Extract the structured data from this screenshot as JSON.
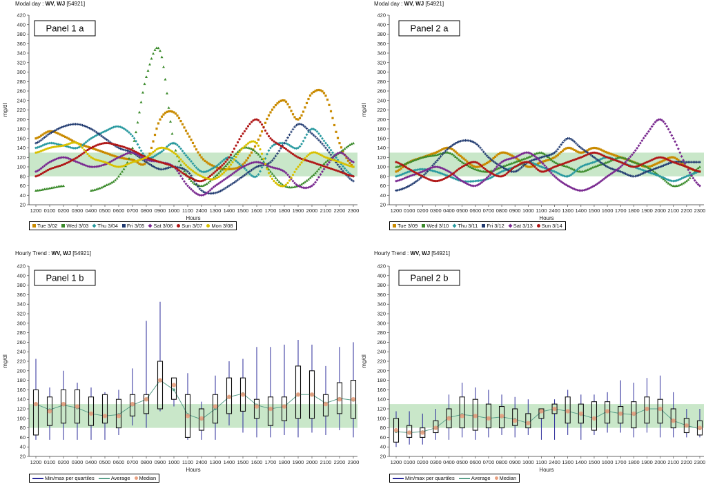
{
  "panels": [
    {
      "title_prefix": "Modal day : ",
      "title_bold": "WV, WJ",
      "title_suffix": " [54921]",
      "label": "Panel 1 a",
      "legend": [
        {
          "name": "Tue 3/02",
          "color": "#c98a00",
          "marker": "square"
        },
        {
          "name": "Wed 3/03",
          "color": "#3a8a2a",
          "marker": "triangle"
        },
        {
          "name": "Thu 3/04",
          "color": "#2a9aa0",
          "marker": "diamond"
        },
        {
          "name": "Fri 3/05",
          "color": "#203a70",
          "marker": "plus"
        },
        {
          "name": "Sat 3/06",
          "color": "#7a2a90",
          "marker": "diamond"
        },
        {
          "name": "Sun 3/07",
          "color": "#b01818",
          "marker": "circle"
        },
        {
          "name": "Mon 3/08",
          "color": "#d8c000",
          "marker": "circle"
        }
      ]
    },
    {
      "title_prefix": "Modal day : ",
      "title_bold": "WV, WJ",
      "title_suffix": " [54921]",
      "label": "Panel 2 a",
      "legend": [
        {
          "name": "Tue 3/09",
          "color": "#c98a00",
          "marker": "square"
        },
        {
          "name": "Wed 3/10",
          "color": "#3a8a2a",
          "marker": "triangle"
        },
        {
          "name": "Thu 3/11",
          "color": "#2a9aa0",
          "marker": "diamond"
        },
        {
          "name": "Fri 3/12",
          "color": "#203a70",
          "marker": "plus"
        },
        {
          "name": "Sat 3/13",
          "color": "#7a2a90",
          "marker": "diamond"
        },
        {
          "name": "Sun 3/14",
          "color": "#b01818",
          "marker": "circle"
        }
      ]
    },
    {
      "title_prefix": "Hourly Trend : ",
      "title_bold": "WV, WJ",
      "title_suffix": " [54921]",
      "label": "Panel 1 b",
      "legend": [
        {
          "name": "Min/max per quartiles",
          "color": "#2a2a9a",
          "marker": "line"
        },
        {
          "name": "Average",
          "color": "#5aa08a",
          "marker": "line"
        },
        {
          "name": "Median",
          "color": "#e8a080",
          "marker": "dot"
        }
      ]
    },
    {
      "title_prefix": "Hourly Trend : ",
      "title_bold": "WV, WJ",
      "title_suffix": " [54921]",
      "label": "Panel 2 b",
      "legend": [
        {
          "name": "Min/max per quartiles",
          "color": "#2a2a9a",
          "marker": "line"
        },
        {
          "name": "Average",
          "color": "#5aa08a",
          "marker": "line"
        },
        {
          "name": "Median",
          "color": "#e8a080",
          "marker": "dot"
        }
      ]
    }
  ],
  "chart_data": [
    {
      "type": "line",
      "xlabel": "Hours",
      "ylabel": "mg/dl",
      "ylim": [
        20,
        420
      ],
      "yticks": [
        20,
        40,
        60,
        80,
        100,
        120,
        140,
        160,
        180,
        200,
        220,
        240,
        260,
        280,
        300,
        320,
        340,
        360,
        380,
        400,
        420
      ],
      "categories": [
        "1200",
        "0100",
        "0200",
        "0300",
        "0400",
        "0500",
        "0600",
        "0700",
        "0800",
        "0900",
        "1000",
        "1100",
        "2400",
        "1300",
        "1400",
        "1500",
        "1600",
        "1700",
        "1800",
        "1900",
        "2000",
        "2100",
        "2200",
        "2300"
      ],
      "target_range": [
        80,
        130
      ],
      "series": [
        {
          "name": "Tue 3/02",
          "values": [
            160,
            175,
            165,
            150,
            140,
            130,
            120,
            115,
            110,
            200,
            215,
            170,
            120,
            100,
            95,
            105,
            150,
            215,
            240,
            200,
            255,
            250,
            150,
            100
          ]
        },
        {
          "name": "Wed 3/03",
          "values": [
            50,
            55,
            60,
            null,
            50,
            60,
            80,
            140,
            290,
            345,
            150,
            80,
            60,
            80,
            110,
            140,
            130,
            90,
            60,
            60,
            80,
            110,
            130,
            150
          ]
        },
        {
          "name": "Thu 3/04",
          "values": [
            140,
            150,
            145,
            140,
            160,
            175,
            185,
            165,
            120,
            130,
            150,
            120,
            90,
            100,
            120,
            100,
            80,
            140,
            150,
            140,
            180,
            150,
            110,
            80
          ]
        },
        {
          "name": "Fri 3/05",
          "values": [
            150,
            170,
            185,
            190,
            180,
            160,
            140,
            130,
            110,
            95,
            100,
            90,
            50,
            45,
            60,
            80,
            100,
            110,
            150,
            190,
            170,
            140,
            100,
            70
          ]
        },
        {
          "name": "Sat 3/06",
          "values": [
            90,
            110,
            120,
            110,
            100,
            105,
            120,
            130,
            115,
            110,
            100,
            60,
            40,
            60,
            80,
            100,
            110,
            100,
            90,
            60,
            60,
            100,
            130,
            110
          ]
        },
        {
          "name": "Sun 3/07",
          "values": [
            80,
            95,
            105,
            120,
            140,
            150,
            145,
            135,
            120,
            110,
            100,
            80,
            70,
            90,
            120,
            170,
            200,
            160,
            140,
            120,
            110,
            100,
            90,
            80
          ]
        },
        {
          "name": "Mon 3/08",
          "values": [
            130,
            140,
            145,
            150,
            120,
            110,
            100,
            110,
            120,
            140,
            130,
            100,
            80,
            75,
            100,
            140,
            150,
            80,
            60,
            100,
            130,
            120,
            110,
            100
          ]
        }
      ]
    },
    {
      "type": "line",
      "xlabel": "Hours",
      "ylabel": "mg/dl",
      "ylim": [
        20,
        420
      ],
      "yticks": [
        20,
        40,
        60,
        80,
        100,
        120,
        140,
        160,
        180,
        200,
        220,
        240,
        260,
        280,
        300,
        320,
        340,
        360,
        380,
        400,
        420
      ],
      "categories": [
        "1200",
        "0100",
        "0200",
        "0300",
        "0400",
        "0500",
        "0600",
        "0700",
        "0800",
        "0900",
        "1000",
        "1100",
        "2400",
        "1300",
        "1400",
        "1500",
        "1600",
        "1700",
        "1800",
        "1900",
        "2000",
        "2100",
        "2200",
        "2300"
      ],
      "target_range": [
        80,
        130
      ],
      "series": [
        {
          "name": "Tue 3/09",
          "values": [
            90,
            110,
            120,
            130,
            140,
            120,
            100,
            110,
            130,
            120,
            100,
            110,
            120,
            140,
            130,
            140,
            130,
            120,
            110,
            100,
            110,
            120,
            100,
            90
          ]
        },
        {
          "name": "Wed 3/10",
          "values": [
            100,
            110,
            120,
            125,
            130,
            110,
            95,
            90,
            100,
            110,
            120,
            130,
            110,
            100,
            90,
            100,
            110,
            120,
            110,
            100,
            80,
            60,
            70,
            100
          ]
        },
        {
          "name": "Thu 3/11",
          "values": [
            80,
            90,
            95,
            90,
            80,
            70,
            70,
            75,
            90,
            100,
            110,
            100,
            90,
            80,
            100,
            110,
            120,
            110,
            100,
            90,
            80,
            70,
            80,
            90
          ]
        },
        {
          "name": "Fri 3/12",
          "values": [
            50,
            60,
            80,
            110,
            140,
            155,
            150,
            120,
            100,
            90,
            110,
            120,
            130,
            160,
            140,
            120,
            100,
            90,
            80,
            90,
            100,
            110,
            110,
            110
          ]
        },
        {
          "name": "Sat 3/13",
          "values": [
            70,
            80,
            90,
            100,
            90,
            70,
            60,
            80,
            110,
            120,
            130,
            110,
            80,
            60,
            50,
            60,
            80,
            100,
            130,
            170,
            200,
            160,
            100,
            60
          ]
        },
        {
          "name": "Sun 3/14",
          "values": [
            110,
            95,
            80,
            70,
            80,
            100,
            110,
            90,
            80,
            100,
            110,
            90,
            100,
            110,
            120,
            130,
            120,
            110,
            100,
            110,
            120,
            110,
            100,
            90
          ]
        }
      ]
    },
    {
      "type": "box",
      "xlabel": "Hours",
      "ylabel": "mg/dl",
      "ylim": [
        20,
        420
      ],
      "yticks": [
        20,
        40,
        60,
        80,
        100,
        120,
        140,
        160,
        180,
        200,
        220,
        240,
        260,
        280,
        300,
        320,
        340,
        360,
        380,
        400,
        420
      ],
      "categories": [
        "1200",
        "0100",
        "0200",
        "0300",
        "0400",
        "0500",
        "0600",
        "0700",
        "0800",
        "0900",
        "1000",
        "1100",
        "2400",
        "1300",
        "1400",
        "1500",
        "1600",
        "1700",
        "1800",
        "1900",
        "2000",
        "2100",
        "2200",
        "2300"
      ],
      "target_range": [
        80,
        130
      ],
      "min": [
        55,
        55,
        55,
        55,
        55,
        55,
        65,
        85,
        80,
        115,
        125,
        55,
        55,
        55,
        85,
        70,
        60,
        60,
        65,
        60,
        70,
        65,
        75,
        60
      ],
      "q1": [
        65,
        85,
        90,
        90,
        85,
        90,
        80,
        105,
        110,
        120,
        140,
        60,
        75,
        90,
        110,
        115,
        100,
        85,
        95,
        100,
        100,
        105,
        110,
        100
      ],
      "median": [
        130,
        115,
        130,
        125,
        110,
        105,
        105,
        130,
        140,
        180,
        170,
        105,
        100,
        125,
        145,
        150,
        125,
        120,
        125,
        150,
        150,
        130,
        140,
        140
      ],
      "q3": [
        160,
        145,
        160,
        160,
        145,
        150,
        140,
        150,
        150,
        220,
        185,
        150,
        120,
        150,
        185,
        185,
        140,
        145,
        145,
        210,
        200,
        150,
        175,
        180
      ],
      "max": [
        225,
        165,
        200,
        175,
        165,
        155,
        160,
        205,
        305,
        345,
        185,
        195,
        135,
        190,
        220,
        225,
        250,
        250,
        255,
        265,
        255,
        210,
        250,
        260
      ],
      "average": [
        130,
        118,
        128,
        122,
        110,
        105,
        108,
        128,
        140,
        180,
        160,
        108,
        98,
        120,
        145,
        152,
        128,
        120,
        125,
        150,
        150,
        132,
        142,
        138
      ]
    },
    {
      "type": "box",
      "xlabel": "Hours",
      "ylabel": "mg/dl",
      "ylim": [
        20,
        420
      ],
      "yticks": [
        20,
        40,
        60,
        80,
        100,
        120,
        140,
        160,
        180,
        200,
        220,
        240,
        260,
        280,
        300,
        320,
        340,
        360,
        380,
        400,
        420
      ],
      "categories": [
        "1200",
        "0100",
        "0200",
        "0300",
        "0400",
        "0500",
        "0600",
        "0700",
        "0800",
        "0900",
        "1000",
        "1100",
        "2400",
        "1300",
        "1400",
        "1500",
        "1600",
        "1700",
        "1800",
        "1900",
        "2000",
        "2100",
        "2200",
        "2300"
      ],
      "target_range": [
        80,
        130
      ],
      "min": [
        40,
        45,
        45,
        55,
        55,
        60,
        55,
        60,
        65,
        60,
        65,
        55,
        55,
        65,
        55,
        65,
        70,
        70,
        60,
        70,
        60,
        60,
        60,
        60
      ],
      "q1": [
        50,
        60,
        60,
        70,
        80,
        80,
        75,
        80,
        80,
        85,
        80,
        100,
        110,
        90,
        90,
        75,
        90,
        90,
        80,
        90,
        90,
        80,
        70,
        65
      ],
      "median": [
        75,
        70,
        70,
        80,
        100,
        105,
        105,
        100,
        105,
        95,
        90,
        115,
        120,
        115,
        110,
        100,
        115,
        110,
        110,
        120,
        120,
        95,
        85,
        80
      ],
      "q3": [
        100,
        85,
        80,
        95,
        120,
        145,
        140,
        130,
        125,
        120,
        110,
        120,
        130,
        145,
        130,
        135,
        135,
        125,
        135,
        145,
        140,
        120,
        100,
        95
      ],
      "max": [
        115,
        115,
        110,
        120,
        150,
        175,
        165,
        160,
        150,
        145,
        140,
        120,
        140,
        160,
        150,
        150,
        155,
        180,
        175,
        185,
        190,
        155,
        120,
        120
      ],
      "average": [
        72,
        70,
        72,
        80,
        102,
        108,
        105,
        100,
        103,
        98,
        90,
        114,
        120,
        115,
        108,
        100,
        115,
        110,
        108,
        120,
        120,
        95,
        85,
        78
      ]
    }
  ]
}
